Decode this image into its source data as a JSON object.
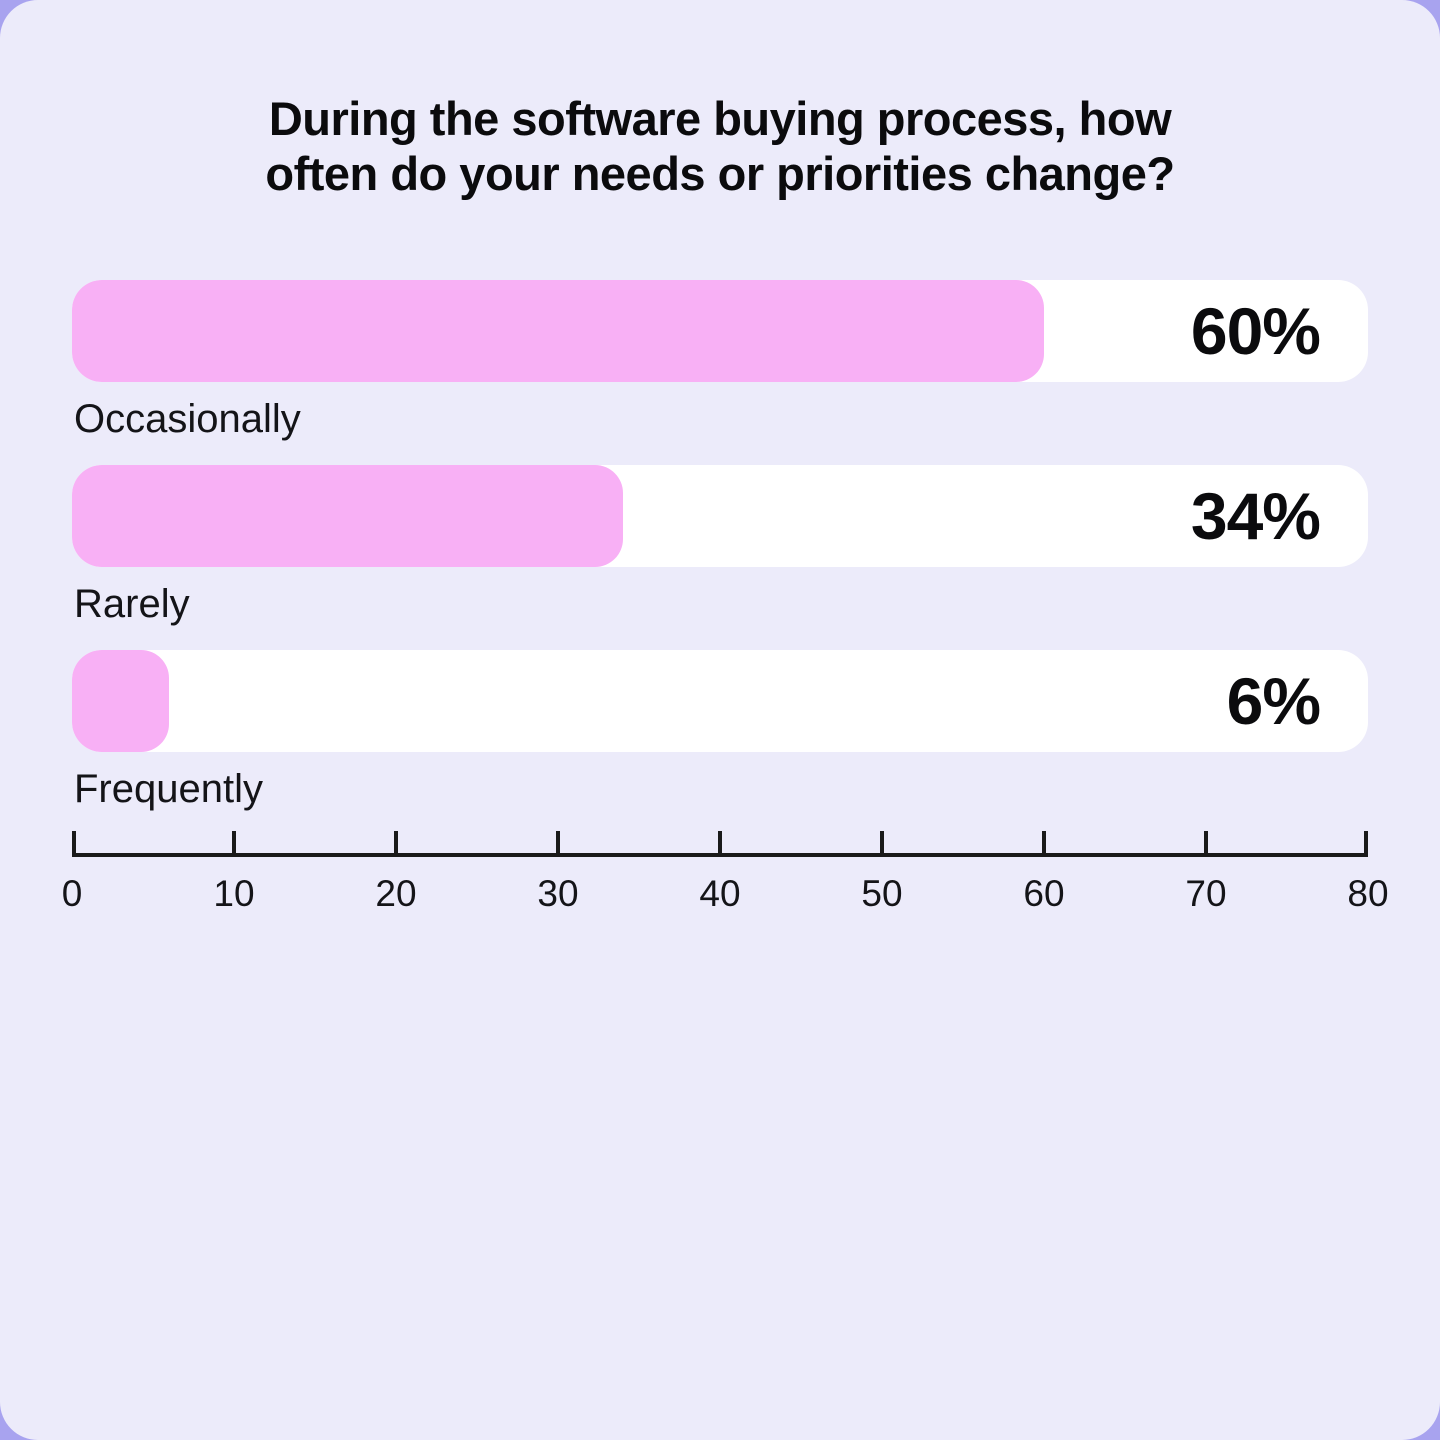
{
  "colors": {
    "page_bg": "#a8a3ef",
    "card_bg": "#ecebfa",
    "bar_fill": "#f8b0f5",
    "bar_track": "#ffffff",
    "axis": "#1a1a1a",
    "text": "#0b0b0d"
  },
  "chart_data": {
    "type": "bar",
    "orientation": "horizontal",
    "title": "During the software buying process, how often do your needs or priorities change?",
    "categories": [
      "Occasionally",
      "Rarely",
      "Frequently"
    ],
    "values": [
      60,
      34,
      6
    ],
    "value_labels": [
      "60%",
      "34%",
      "6%"
    ],
    "xlabel": "",
    "ylabel": "",
    "xlim": [
      0,
      80
    ],
    "x_ticks": [
      0,
      10,
      20,
      30,
      40,
      50,
      60,
      70,
      80
    ],
    "grid": false,
    "legend": false
  }
}
